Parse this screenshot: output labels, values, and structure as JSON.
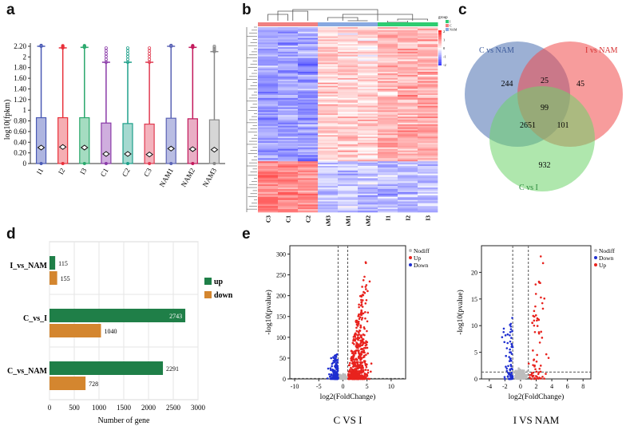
{
  "panels": {
    "a": "a",
    "b": "b",
    "c": "c",
    "d": "d",
    "e": "e"
  },
  "boxplot": {
    "ylabel": "log10(fpkm)",
    "yticks": [
      0,
      0.2,
      0.4,
      0.6,
      0.8,
      1,
      1.2,
      1.4,
      1.6,
      1.8,
      2,
      2.2
    ],
    "ytick_labels": [
      "0",
      "0.20",
      "0.40",
      "0.60",
      "0.80",
      "1",
      "1.20",
      "1.40",
      "1.60",
      "1.80",
      "2",
      "2.20"
    ],
    "samples": [
      {
        "name": "I1",
        "color": "#4a5ab5",
        "q3": 0.86,
        "median": 0.3,
        "whisker_top": 2.2,
        "box_color": "#9aa3d8"
      },
      {
        "name": "I2",
        "color": "#e8303a",
        "q3": 0.86,
        "median": 0.31,
        "whisker_top": 2.17,
        "box_color": "#f29aa0"
      },
      {
        "name": "I3",
        "color": "#2aa86c",
        "q3": 0.86,
        "median": 0.3,
        "whisker_top": 2.18,
        "box_color": "#8ed3b2"
      },
      {
        "name": "C1",
        "color": "#8a3aa8",
        "q3": 0.76,
        "median": 0.18,
        "whisker_top": 1.9,
        "box_color": "#c39ad6"
      },
      {
        "name": "C2",
        "color": "#1fa08a",
        "q3": 0.75,
        "median": 0.18,
        "whisker_top": 1.9,
        "box_color": "#8fd0c4"
      },
      {
        "name": "C3",
        "color": "#e03a50",
        "q3": 0.74,
        "median": 0.17,
        "whisker_top": 1.9,
        "box_color": "#f0a0ac"
      },
      {
        "name": "NAM1",
        "color": "#5a63b5",
        "q3": 0.85,
        "median": 0.28,
        "whisker_top": 2.2,
        "box_color": "#a7acdc"
      },
      {
        "name": "NAM2",
        "color": "#c2185b",
        "q3": 0.84,
        "median": 0.27,
        "whisker_top": 2.18,
        "box_color": "#e39ab6"
      },
      {
        "name": "NAM3",
        "color": "#888888",
        "q3": 0.82,
        "median": 0.26,
        "whisker_top": 2.1,
        "box_color": "#cccccc"
      }
    ]
  },
  "heatmap": {
    "columns": [
      "C3",
      "C1",
      "C2",
      "NAM3",
      "NAM1",
      "NAM2",
      "I1",
      "I2",
      "I3"
    ],
    "legend_title": "group",
    "legend_groups": [
      "I",
      "C",
      "NAM"
    ],
    "group_colors": {
      "I": "#2ecc71",
      "C": "#f08080",
      "NAM": "#87a8e0"
    },
    "scale_ticks": [
      "2",
      "1",
      "0",
      "-1",
      "-2"
    ]
  },
  "venn": {
    "sets": [
      {
        "name": "C vs NAM",
        "color": "#3c5a9a"
      },
      {
        "name": "I vs NAM",
        "color": "#d62f2f"
      },
      {
        "name": "C vs I",
        "color": "#2a8a3a"
      }
    ],
    "regions": {
      "c_nam_only": "244",
      "c_nam_i_nam": "25",
      "i_nam_only": "45",
      "all": "99",
      "c_nam_c_i": "2651",
      "i_nam_c_i": "101",
      "c_i_only": "932"
    }
  },
  "bars": {
    "xlabel": "Number of gene",
    "xticks": [
      "0",
      "500",
      "1000",
      "1500",
      "2000",
      "2500",
      "3000"
    ],
    "xmax": 3000,
    "legend": [
      {
        "name": "up",
        "color": "#1f7f48"
      },
      {
        "name": "down",
        "color": "#d4862f"
      }
    ],
    "groups": [
      {
        "name": "I_vs_NAM",
        "up": 115,
        "down": 155,
        "up_label": "115",
        "down_label": "155"
      },
      {
        "name": "C_vs_I",
        "up": 2743,
        "down": 1040,
        "up_label": "2743",
        "down_label": "1040"
      },
      {
        "name": "C_vs_NAM",
        "up": 2291,
        "down": 728,
        "up_label": "2291",
        "down_label": "728"
      }
    ]
  },
  "volcano1": {
    "title": "C VS I",
    "xlabel": "log2(FoldChange)",
    "ylabel": "-log10(pvalue)",
    "xticks": [
      "-10",
      "-5",
      "0",
      "5",
      "10"
    ],
    "yticks": [
      "0",
      "50",
      "100",
      "150",
      "200",
      "250",
      "300"
    ],
    "xlim": [
      -11,
      13
    ],
    "ylim": [
      0,
      320
    ],
    "legend": [
      {
        "name": "Nodiff",
        "color": "#bdbdbd"
      },
      {
        "name": "Up",
        "color": "#e8231e"
      },
      {
        "name": "Down",
        "color": "#1f2fd0"
      }
    ]
  },
  "volcano2": {
    "title": "I VS NAM",
    "xlabel": "log2(FoldChange)",
    "ylabel": "-log10(pvalue)",
    "xticks": [
      "-4",
      "-2",
      "0",
      "2",
      "4",
      "6",
      "8"
    ],
    "yticks": [
      "0",
      "5",
      "10",
      "15",
      "20"
    ],
    "xlim": [
      -5,
      9
    ],
    "ylim": [
      0,
      25
    ],
    "legend": [
      {
        "name": "Nodiff",
        "color": "#bdbdbd"
      },
      {
        "name": "Down",
        "color": "#1f2fd0"
      },
      {
        "name": "Up",
        "color": "#e8231e"
      }
    ]
  }
}
